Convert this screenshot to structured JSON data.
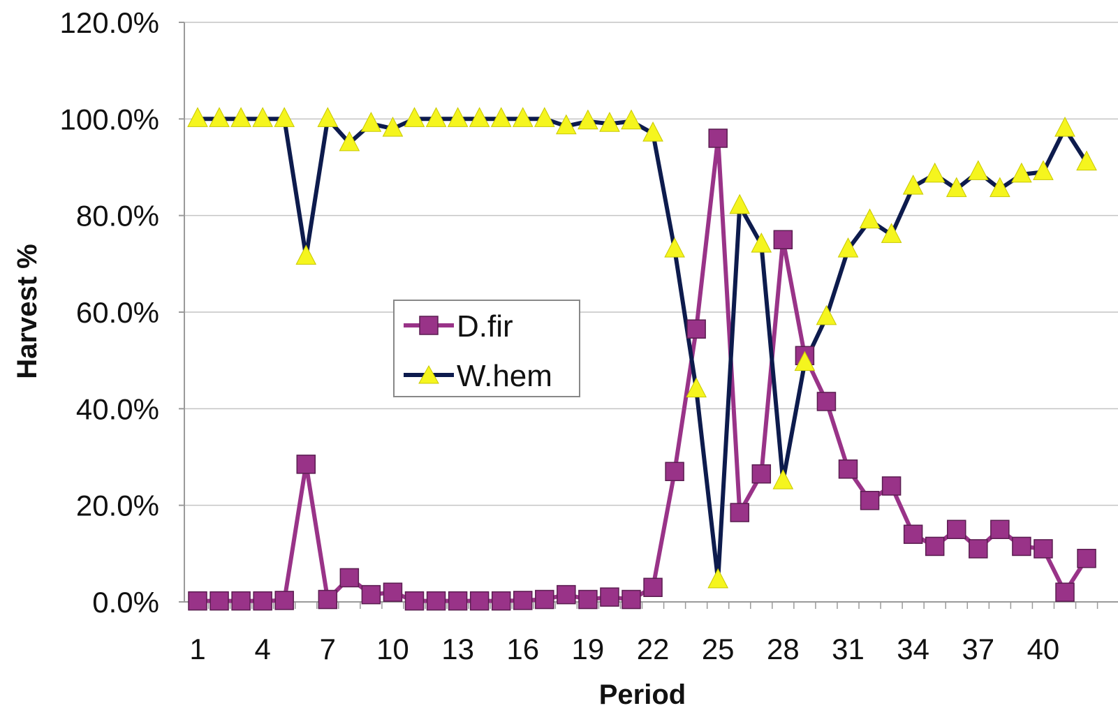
{
  "chart_data": {
    "type": "line",
    "xlabel": "Period",
    "ylabel": "Harvest %",
    "ylim": [
      0,
      120
    ],
    "y_ticks": [
      "0.0%",
      "20.0%",
      "40.0%",
      "60.0%",
      "80.0%",
      "100.0%",
      "120.0%"
    ],
    "x_tick_labels": [
      "1",
      "4",
      "7",
      "10",
      "13",
      "16",
      "19",
      "22",
      "25",
      "28",
      "31",
      "34",
      "37",
      "40"
    ],
    "x": [
      1,
      2,
      3,
      4,
      5,
      6,
      7,
      8,
      9,
      10,
      11,
      12,
      13,
      14,
      15,
      16,
      17,
      18,
      19,
      20,
      21,
      22,
      23,
      24,
      25,
      26,
      27,
      28,
      29,
      30,
      31,
      32,
      33,
      34,
      35,
      36,
      37,
      38,
      39,
      40,
      41,
      42
    ],
    "grid": "horizontal",
    "legend_position": "center-left",
    "series": [
      {
        "name": "D.fir",
        "color": "#993388",
        "marker": "square",
        "values": [
          0.2,
          0.2,
          0.2,
          0.2,
          0.3,
          28.5,
          0.5,
          5,
          1.5,
          2,
          0.2,
          0.2,
          0.2,
          0.2,
          0.2,
          0.3,
          0.5,
          1.5,
          0.5,
          1,
          0.5,
          3,
          27,
          56.5,
          96,
          18.5,
          26.5,
          75,
          51,
          41.5,
          27.5,
          21,
          24,
          14,
          11.5,
          15,
          11,
          15,
          11.5,
          11,
          2,
          9
        ]
      },
      {
        "name": "W.hem",
        "color": "#0d1b4d",
        "marker": "triangle",
        "marker_color": "#f5f51e",
        "values": [
          100,
          100,
          100,
          100,
          100,
          71.5,
          100,
          95,
          99,
          98,
          100,
          100,
          100,
          100,
          100,
          100,
          100,
          98.5,
          99.5,
          99,
          99.5,
          97,
          73,
          44,
          4.5,
          82,
          74,
          25,
          49.5,
          59,
          73,
          79,
          76,
          86,
          88.5,
          85.5,
          89,
          85.5,
          88.5,
          89,
          98,
          91
        ]
      }
    ]
  }
}
